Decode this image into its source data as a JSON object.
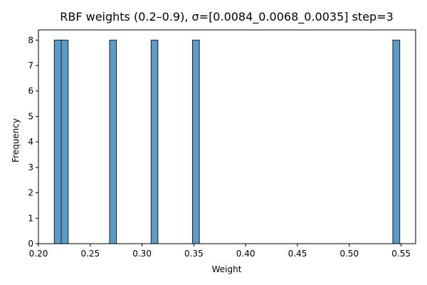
{
  "chart_data": {
    "type": "bar",
    "title": "RBF weights (0.2–0.9), σ=[0.0084_0.0068_0.0035] step=3",
    "xlabel": "Weight",
    "ylabel": "Frequency",
    "xlim": [
      0.2,
      0.564
    ],
    "ylim": [
      0,
      8.4
    ],
    "xticks": [
      0.2,
      0.25,
      0.3,
      0.35,
      0.4,
      0.45,
      0.5,
      0.55
    ],
    "xtick_labels": [
      "0.20",
      "0.25",
      "0.30",
      "0.35",
      "0.40",
      "0.45",
      "0.50",
      "0.55"
    ],
    "yticks": [
      0,
      1,
      2,
      3,
      4,
      5,
      6,
      7,
      8
    ],
    "ytick_labels": [
      "0",
      "1",
      "2",
      "3",
      "4",
      "5",
      "6",
      "7",
      "8"
    ],
    "bin_width": 0.00666,
    "bars": [
      {
        "x0": 0.2153,
        "x1": 0.222,
        "value": 8
      },
      {
        "x0": 0.222,
        "x1": 0.2287,
        "value": 8
      },
      {
        "x0": 0.2687,
        "x1": 0.2753,
        "value": 8
      },
      {
        "x0": 0.3087,
        "x1": 0.3153,
        "value": 8
      },
      {
        "x0": 0.3487,
        "x1": 0.3553,
        "value": 8
      },
      {
        "x0": 0.542,
        "x1": 0.5487,
        "value": 8
      }
    ],
    "bar_color": "#5b9bc8",
    "bar_edge_color": "#1f1f1f",
    "grid": false,
    "legend": "none"
  }
}
